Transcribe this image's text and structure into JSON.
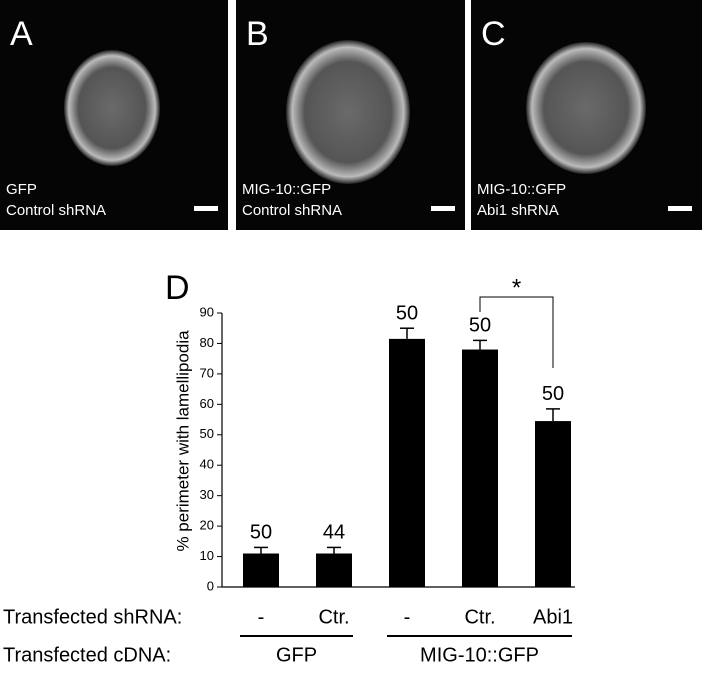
{
  "panels": [
    {
      "letter": "A",
      "caption": [
        "GFP",
        "Control shRNA"
      ]
    },
    {
      "letter": "B",
      "caption": [
        "MIG-10::GFP",
        "Control shRNA"
      ]
    },
    {
      "letter": "C",
      "caption": [
        "MIG-10::GFP",
        "Abi1 shRNA"
      ]
    }
  ],
  "chart_data": {
    "type": "bar",
    "panel_letter": "D",
    "ylabel": "% perimeter with lamellipodia",
    "category_title": "Transfected shRNA:",
    "categories": [
      "-",
      "Ctr.",
      "-",
      "Ctr.",
      "Abi1"
    ],
    "group_title": "Transfected cDNA:",
    "groups": [
      "GFP",
      "MIG-10::GFP"
    ],
    "values": [
      11,
      11,
      81.5,
      78,
      54.5
    ],
    "errors": [
      2,
      2,
      3.5,
      3,
      4
    ],
    "n_labels": [
      "50",
      "44",
      "50",
      "50",
      "50"
    ],
    "significance": "*",
    "color": "#000000",
    "ylim": [
      0,
      90
    ],
    "yticks": [
      0,
      10,
      20,
      30,
      40,
      50,
      60,
      70,
      80,
      90
    ]
  }
}
